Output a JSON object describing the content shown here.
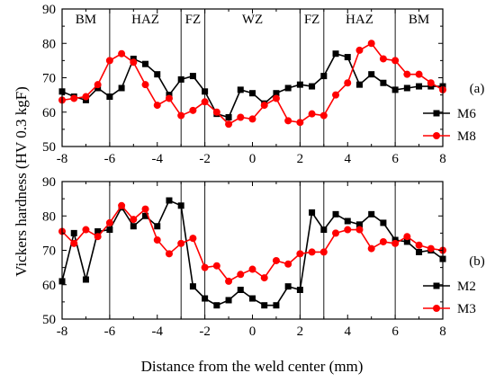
{
  "figure": {
    "xlabel": "Distance from the weld center (mm)",
    "ylabel": "Vickers hardness (HV 0.3 kgF)"
  },
  "chart_data": [
    {
      "type": "line",
      "panel_label": "(a)",
      "xlim": [
        -8,
        8
      ],
      "ylim": [
        50,
        90
      ],
      "xticks": [
        -8,
        -6,
        -4,
        -2,
        0,
        2,
        4,
        6,
        8
      ],
      "yticks": [
        50,
        60,
        70,
        80,
        90
      ],
      "x_tick_labels": [
        "-8",
        "-6",
        "-4",
        "-2",
        "0",
        "2",
        "4",
        "6",
        "8"
      ],
      "y_tick_labels": [
        "50",
        "60",
        "70",
        "80",
        "90"
      ],
      "zone_boundaries": [
        -6,
        -3,
        -2,
        2,
        3,
        6
      ],
      "zones": [
        {
          "label": "BM",
          "center": -7
        },
        {
          "label": "HAZ",
          "center": -4.5
        },
        {
          "label": "FZ",
          "center": -2.5
        },
        {
          "label": "WZ",
          "center": 0
        },
        {
          "label": "FZ",
          "center": 2.5
        },
        {
          "label": "HAZ",
          "center": 4.5
        },
        {
          "label": "BM",
          "center": 7
        }
      ],
      "legend_position": "right",
      "series": [
        {
          "name": "M6",
          "color": "#000000",
          "marker": "square",
          "points": [
            [
              -8,
              66
            ],
            [
              -7.5,
              64.5
            ],
            [
              -7,
              63.5
            ],
            [
              -6.5,
              67
            ],
            [
              -6,
              64.5
            ],
            [
              -5.5,
              67
            ],
            [
              -5,
              75.5
            ],
            [
              -4.5,
              74
            ],
            [
              -4,
              71
            ],
            [
              -3.5,
              65
            ],
            [
              -3,
              69.5
            ],
            [
              -2.5,
              70.5
            ],
            [
              -2,
              66
            ],
            [
              -1.5,
              59.5
            ],
            [
              -1,
              58.5
            ],
            [
              -0.5,
              66.5
            ],
            [
              0,
              65.5
            ],
            [
              0.5,
              62.5
            ],
            [
              1,
              65.5
            ],
            [
              1.5,
              67
            ],
            [
              2,
              68
            ],
            [
              2.5,
              67.5
            ],
            [
              3,
              70.5
            ],
            [
              3.5,
              77
            ],
            [
              4,
              76
            ],
            [
              4.5,
              68
            ],
            [
              5,
              71
            ],
            [
              5.5,
              68.5
            ],
            [
              6,
              66.5
            ],
            [
              6.5,
              67
            ],
            [
              7,
              67.5
            ],
            [
              7.5,
              67.5
            ],
            [
              8,
              67.5
            ]
          ]
        },
        {
          "name": "M8",
          "color": "#ff0000",
          "marker": "circle",
          "points": [
            [
              -8,
              63.5
            ],
            [
              -7.5,
              64
            ],
            [
              -7,
              64.5
            ],
            [
              -6.5,
              68
            ],
            [
              -6,
              75
            ],
            [
              -5.5,
              77
            ],
            [
              -5,
              74.5
            ],
            [
              -4.5,
              68
            ],
            [
              -4,
              62
            ],
            [
              -3.5,
              64
            ],
            [
              -3,
              59
            ],
            [
              -2.5,
              60.5
            ],
            [
              -2,
              63
            ],
            [
              -1.5,
              60
            ],
            [
              -1,
              56.5
            ],
            [
              -0.5,
              58.5
            ],
            [
              0,
              58
            ],
            [
              0.5,
              62
            ],
            [
              1,
              64
            ],
            [
              1.5,
              57.5
            ],
            [
              2,
              57
            ],
            [
              2.5,
              59.5
            ],
            [
              3,
              59
            ],
            [
              3.5,
              65
            ],
            [
              4,
              68.5
            ],
            [
              4.5,
              78
            ],
            [
              5,
              80
            ],
            [
              5.5,
              75.5
            ],
            [
              6,
              75
            ],
            [
              6.5,
              71
            ],
            [
              7,
              71
            ],
            [
              7.5,
              68.5
            ],
            [
              8,
              66.5
            ]
          ]
        }
      ]
    },
    {
      "type": "line",
      "panel_label": "(b)",
      "xlim": [
        -8,
        8
      ],
      "ylim": [
        50,
        90
      ],
      "xticks": [
        -8,
        -6,
        -4,
        -2,
        0,
        2,
        4,
        6,
        8
      ],
      "yticks": [
        50,
        60,
        70,
        80,
        90
      ],
      "x_tick_labels": [
        "-8",
        "-6",
        "-4",
        "-2",
        "0",
        "2",
        "4",
        "6",
        "8"
      ],
      "y_tick_labels": [
        "50",
        "60",
        "70",
        "80",
        "90"
      ],
      "zone_boundaries": [
        -6,
        -3,
        -2,
        2,
        3,
        6
      ],
      "zones": [],
      "legend_position": "right",
      "series": [
        {
          "name": "M2",
          "color": "#000000",
          "marker": "square",
          "points": [
            [
              -8,
              61
            ],
            [
              -7.5,
              75
            ],
            [
              -7,
              61.5
            ],
            [
              -6.5,
              75.5
            ],
            [
              -6,
              76
            ],
            [
              -5.5,
              82.5
            ],
            [
              -5,
              77
            ],
            [
              -4.5,
              80
            ],
            [
              -4,
              77
            ],
            [
              -3.5,
              84.5
            ],
            [
              -3,
              83
            ],
            [
              -2.5,
              59.5
            ],
            [
              -2,
              56
            ],
            [
              -1.5,
              54
            ],
            [
              -1,
              55.5
            ],
            [
              -0.5,
              58.5
            ],
            [
              0,
              56
            ],
            [
              0.5,
              54
            ],
            [
              1,
              54
            ],
            [
              1.5,
              59.5
            ],
            [
              2,
              58.5
            ],
            [
              2.5,
              81
            ],
            [
              3,
              76
            ],
            [
              3.5,
              80.5
            ],
            [
              4,
              78.5
            ],
            [
              4.5,
              77.5
            ],
            [
              5,
              80.5
            ],
            [
              5.5,
              78
            ],
            [
              6,
              73
            ],
            [
              6.5,
              72.5
            ],
            [
              7,
              69.5
            ],
            [
              7.5,
              70
            ],
            [
              8,
              67.5
            ]
          ]
        },
        {
          "name": "M3",
          "color": "#ff0000",
          "marker": "circle",
          "points": [
            [
              -8,
              75.5
            ],
            [
              -7.5,
              72
            ],
            [
              -7,
              76
            ],
            [
              -6.5,
              74
            ],
            [
              -6,
              78
            ],
            [
              -5.5,
              83
            ],
            [
              -5,
              79
            ],
            [
              -4.5,
              82
            ],
            [
              -4,
              73
            ],
            [
              -3.5,
              69
            ],
            [
              -3,
              72
            ],
            [
              -2.5,
              73.5
            ],
            [
              -2,
              65
            ],
            [
              -1.5,
              65.5
            ],
            [
              -1,
              61
            ],
            [
              -0.5,
              63
            ],
            [
              0,
              64.5
            ],
            [
              0.5,
              62
            ],
            [
              1,
              67
            ],
            [
              1.5,
              66
            ],
            [
              2,
              69
            ],
            [
              2.5,
              69.5
            ],
            [
              3,
              69.5
            ],
            [
              3.5,
              75
            ],
            [
              4,
              76
            ],
            [
              4.5,
              76
            ],
            [
              5,
              70.5
            ],
            [
              5.5,
              72.5
            ],
            [
              6,
              72
            ],
            [
              6.5,
              74
            ],
            [
              7,
              71.5
            ],
            [
              7.5,
              70.5
            ],
            [
              8,
              70
            ]
          ]
        }
      ]
    }
  ]
}
